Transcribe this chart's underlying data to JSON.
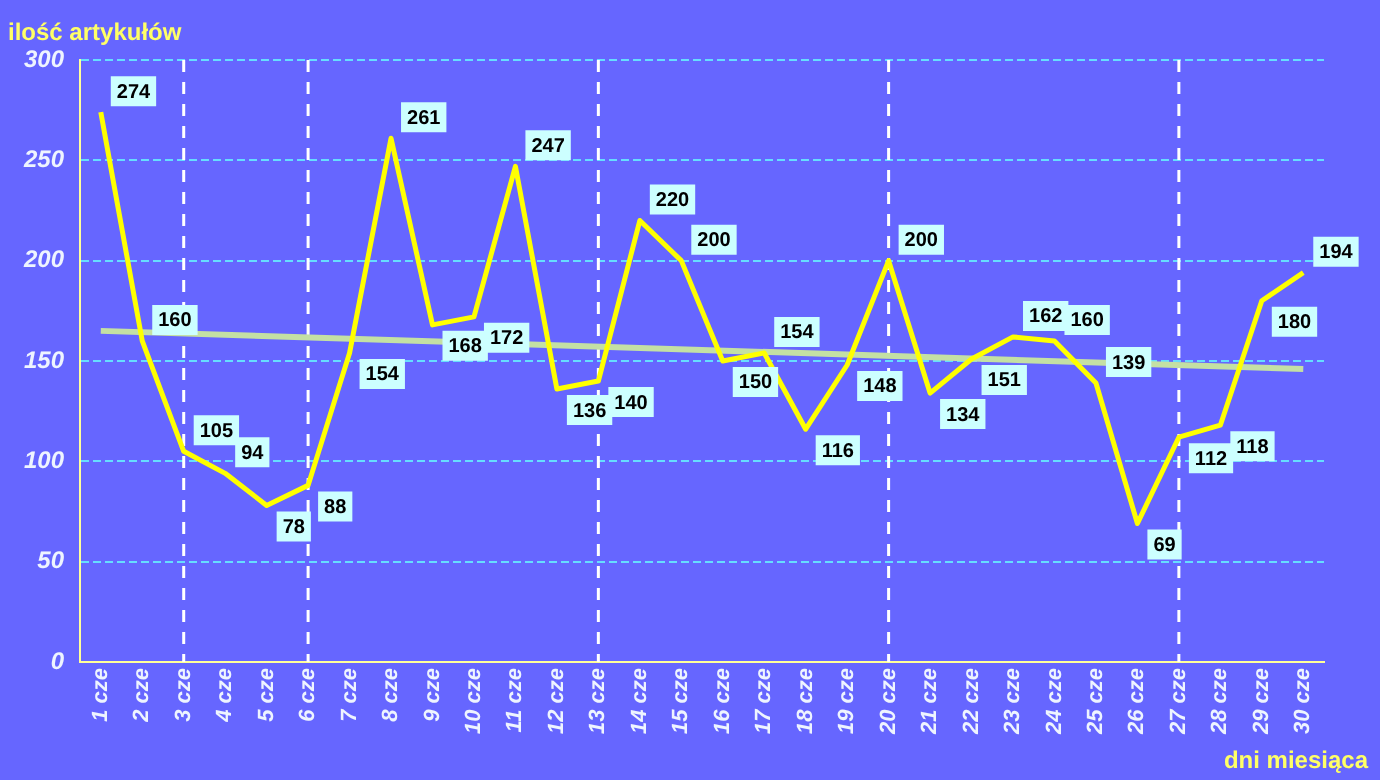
{
  "chart_data": {
    "type": "line",
    "xlabel": "dni miesiąca",
    "ylabel": "ilość artykułów",
    "categories": [
      "1 cze",
      "2 cze",
      "3 cze",
      "4 cze",
      "5 cze",
      "6 cze",
      "7 cze",
      "8 cze",
      "9 cze",
      "10 cze",
      "11 cze",
      "12 cze",
      "13 cze",
      "14 cze",
      "15 cze",
      "16 cze",
      "17 cze",
      "18 cze",
      "19 cze",
      "20 cze",
      "21 cze",
      "22 cze",
      "23 cze",
      "24 cze",
      "25 cze",
      "26 cze",
      "27 cze",
      "28 cze",
      "29 cze",
      "30 cze"
    ],
    "series": [
      {
        "color": "#ffff00",
        "values": [
          274,
          160,
          105,
          94,
          78,
          88,
          154,
          261,
          168,
          172,
          247,
          136,
          140,
          220,
          200,
          150,
          154,
          116,
          148,
          200,
          134,
          151,
          162,
          160,
          139,
          69,
          112,
          118,
          180,
          194
        ],
        "value_labels": [
          "274",
          "160",
          "105",
          "94",
          "78",
          "88",
          "154",
          "261",
          "168",
          "172",
          "247",
          "136",
          "140",
          "220",
          "200",
          "150",
          "154",
          "116",
          "148",
          "200",
          "134",
          "151",
          "162",
          "160",
          "139",
          "69",
          "112",
          "118",
          "180",
          "194"
        ]
      },
      {
        "type": "line",
        "color": "#c4e0a4",
        "x": [
          "1 cze",
          "30 cze"
        ],
        "values": [
          165,
          146
        ]
      }
    ],
    "ylim": [
      0,
      300
    ],
    "yticks": [
      0,
      50,
      100,
      150,
      200,
      250,
      300
    ],
    "grid": "y",
    "legend": false,
    "marker": "none",
    "ref_lines": [
      {
        "axis": "x",
        "value": "3 cze",
        "color": "#ffffff",
        "line_style": "dashed"
      },
      {
        "axis": "x",
        "value": "6 cze",
        "color": "#ffffff",
        "line_style": "dashed"
      },
      {
        "axis": "x",
        "value": "13 cze",
        "color": "#ffffff",
        "line_style": "dashed"
      },
      {
        "axis": "x",
        "value": "20 cze",
        "color": "#ffffff",
        "line_style": "dashed"
      },
      {
        "axis": "x",
        "value": "27 cze",
        "color": "#ffffff",
        "line_style": "dashed"
      }
    ]
  }
}
